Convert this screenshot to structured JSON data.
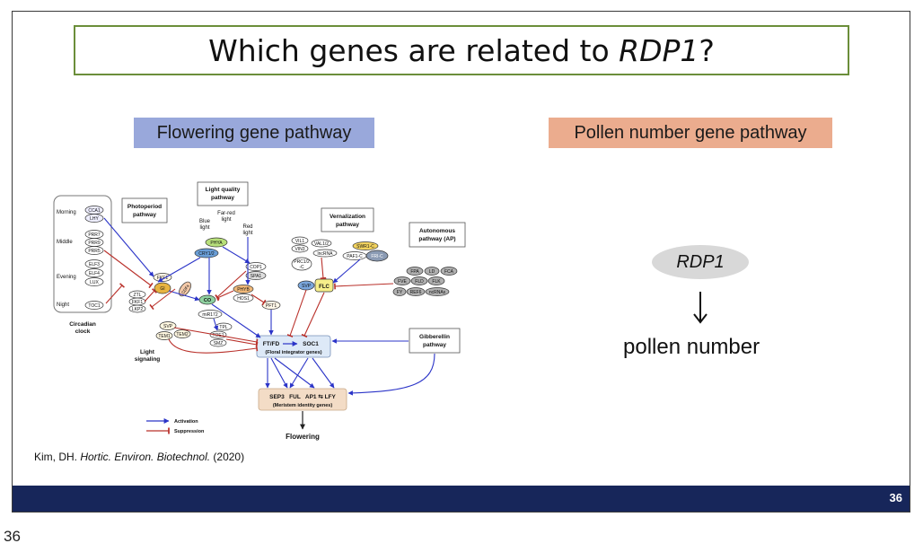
{
  "slide": {
    "title_pre": "Which genes are related to ",
    "title_gene": "RDP1",
    "title_post": "?",
    "tag_flowering": "Flowering gene pathway",
    "tag_pollen": "Pollen number gene pathway",
    "rdp1_label": "RDP1",
    "pollen_label": "pollen number",
    "citation": {
      "author": "Kim, DH. ",
      "journal": "Hortic. Environ. Biotechnol.",
      "year": " (2020)"
    },
    "page_number": "36"
  },
  "outer_page_number": "36",
  "diagram": {
    "circadian": {
      "label_line1": "Circadian",
      "label_line2": "clock",
      "morning": "Morning",
      "middle": "Middle",
      "evening": "Evening",
      "night": "Night",
      "cca1": "CCA1",
      "lhy": "LHY",
      "prr7": "PRR7",
      "prr9": "PRR9",
      "prr5": "PRR5",
      "elf3": "ELF3",
      "elf4": "ELF4",
      "lux": "LUX",
      "toc1": "TOC1"
    },
    "photoperiod_line1": "Photoperiod",
    "photoperiod_line2": "pathway",
    "light_quality_line1": "Light quality",
    "light_quality_line2": "pathway",
    "blue_light_line1": "Blue",
    "blue_light_line2": "light",
    "farred_line1": "Far-red",
    "farred_line2": "light",
    "red_light_line1": "Red",
    "red_light_line2": "light",
    "vernalization_line1": "Vernalization",
    "vernalization_line2": "pathway",
    "autonomous_line1": "Autonomous",
    "autonomous_line2": "pathway (AP)",
    "gibberellin_line1": "Gibberellin",
    "gibberellin_line2": "pathway",
    "light_signaling_line1": "Light",
    "light_signaling_line2": "signaling",
    "genes": {
      "phya": "PHYA",
      "cry12": "CRY1/2",
      "cop1": "COP1",
      "spa1": "SPA1",
      "phyb": "PHYB",
      "hos1": "HOS1",
      "pft1": "PFT1",
      "fkf1": "FKF1",
      "gi": "GI",
      "cdfs": "CDFs",
      "co": "CO",
      "ztl": "ZTL",
      "fkf1b": "FKF1",
      "lkp2": "LKP2",
      "mir172": "miR172",
      "svp": "SVP",
      "tem1": "TEM1",
      "tem2": "TEM2",
      "tpl": "TPL",
      "toe1": "TOE1",
      "smz": "SMZ",
      "vil1": "VIL1",
      "vin3": "VIN3",
      "val12": "VAL1/2",
      "lncrna": "lncRNA",
      "prc12_line1": "PRC1/2",
      "prc12_line2": "-C",
      "svp2": "SVP",
      "flc": "FLC",
      "swr1c": "SWR1-C",
      "paf1c": "PAF1-C",
      "fric": "FRI-C",
      "fpa": "FPA",
      "ld": "LD",
      "fca": "FCA",
      "fve": "FVE",
      "fld": "FLD",
      "flk": "FLK",
      "fy": "FY",
      "ref6": "REF6",
      "ncrna": "ncRNAs"
    },
    "integrator_left": "FT/FD",
    "integrator_right": "SOC1",
    "integrator_sub": "(Floral integrator genes)",
    "meristem_genes": "SEP3   FUL   AP1 ⇆ LFY",
    "meristem_sub": "(Meristem identity genes)",
    "flowering": "Flowering",
    "legend_activation": "Activation",
    "legend_suppression": "Suppression",
    "colors": {
      "activation": "#2b34c8",
      "suppression": "#b9302a",
      "integrator_bg": "#dde9f7",
      "meristem_bg": "#f3dcc6"
    }
  }
}
